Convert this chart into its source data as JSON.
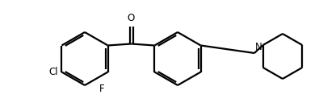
{
  "background_color": "#ffffff",
  "line_color": "#000000",
  "line_width": 1.6,
  "fig_width": 4.0,
  "fig_height": 1.38,
  "dpi": 100,
  "label_Cl": "Cl",
  "label_F": "F",
  "label_O": "O",
  "label_N": "N",
  "font_size": 8.5
}
